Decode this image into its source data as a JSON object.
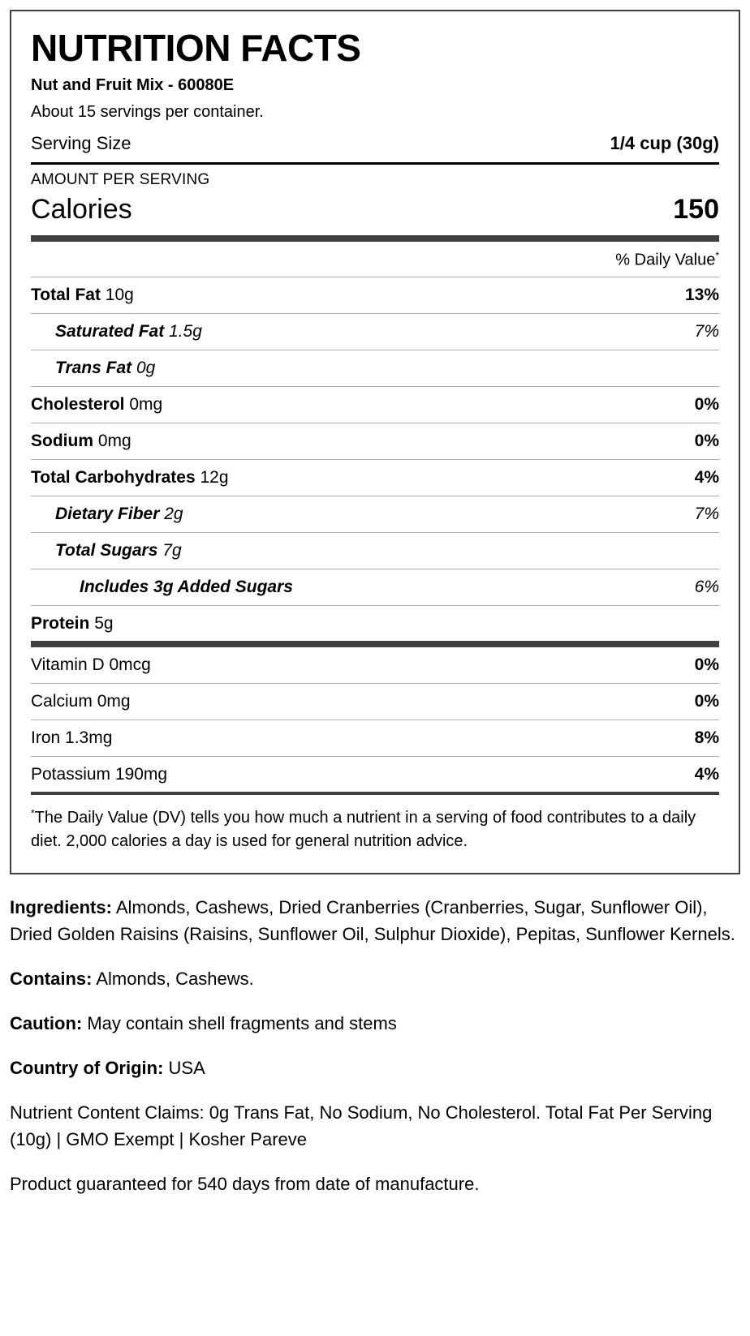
{
  "title": "NUTRITION FACTS",
  "product": "Nut and Fruit Mix - 60080E",
  "servings_per": "About 15 servings per container.",
  "serving_size_label": "Serving Size",
  "serving_size_value": "1/4 cup (30g)",
  "amount_per_serving": "AMOUNT PER SERVING",
  "calories_label": "Calories",
  "calories_value": "150",
  "dv_header": "% Daily Value",
  "nutrients": {
    "total_fat": {
      "label": "Total Fat",
      "amount": "10g",
      "dv": "13%"
    },
    "sat_fat": {
      "label": "Saturated Fat",
      "amount": "1.5g",
      "dv": "7%"
    },
    "trans_fat": {
      "label": "Trans Fat",
      "amount": "0g",
      "dv": ""
    },
    "cholesterol": {
      "label": "Cholesterol",
      "amount": "0mg",
      "dv": "0%"
    },
    "sodium": {
      "label": "Sodium",
      "amount": "0mg",
      "dv": "0%"
    },
    "total_carb": {
      "label": "Total Carbohydrates",
      "amount": "12g",
      "dv": "4%"
    },
    "fiber": {
      "label": "Dietary Fiber",
      "amount": "2g",
      "dv": "7%"
    },
    "sugars": {
      "label": "Total Sugars",
      "amount": "7g",
      "dv": ""
    },
    "added_sugars": {
      "label": "Includes 3g Added Sugars",
      "amount": "",
      "dv": "6%"
    },
    "protein": {
      "label": "Protein",
      "amount": "5g",
      "dv": ""
    }
  },
  "vitamins": {
    "vitd": {
      "label": "Vitamin D",
      "amount": "0mcg",
      "dv": "0%"
    },
    "calc": {
      "label": "Calcium",
      "amount": "0mg",
      "dv": "0%"
    },
    "iron": {
      "label": "Iron",
      "amount": "1.3mg",
      "dv": "8%"
    },
    "pot": {
      "label": "Potassium",
      "amount": "190mg",
      "dv": "4%"
    }
  },
  "footnote": "The Daily Value (DV) tells you how much a nutrient in a serving of food contributes to a daily diet. 2,000 calories a day is used for general nutrition advice.",
  "below": {
    "ingredients_label": "Ingredients:",
    "ingredients": "Almonds, Cashews, Dried Cranberries (Cranberries, Sugar, Sunflower Oil), Dried Golden Raisins (Raisins, Sunflower Oil, Sulphur Dioxide), Pepitas, Sunflower Kernels.",
    "contains_label": "Contains:",
    "contains": "Almonds, Cashews.",
    "caution_label": "Caution:",
    "caution": "May contain shell fragments and stems",
    "origin_label": "Country of Origin:",
    "origin": "USA",
    "claims": "Nutrient Content Claims: 0g Trans Fat, No Sodium, No Cholesterol. Total Fat Per Serving (10g) | GMO Exempt | Kosher Pareve",
    "guarantee": "Product guaranteed for 540 days from date of manufacture."
  }
}
